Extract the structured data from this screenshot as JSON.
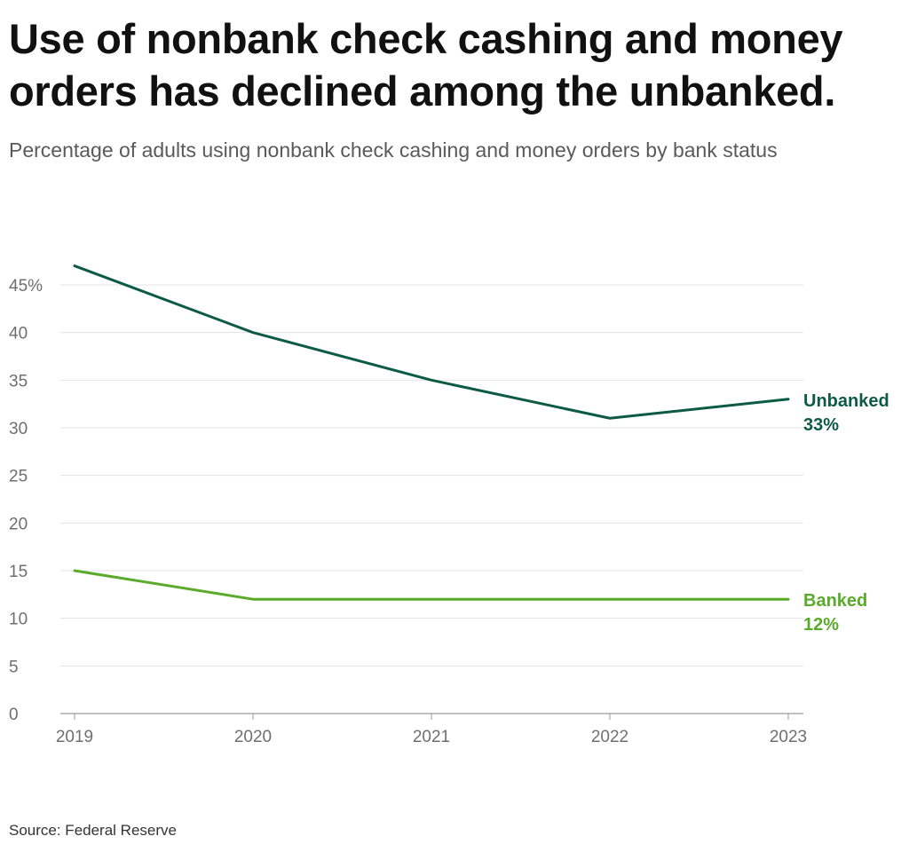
{
  "header": {
    "title": "Use of nonbank check cashing and money orders has declined among the unbanked.",
    "subtitle": "Percentage of adults using nonbank check cashing and money orders by bank status"
  },
  "footer": {
    "source": "Source: Federal Reserve"
  },
  "colors": {
    "unbanked": "#0d5a45",
    "banked": "#5aab2c",
    "grid": "#e3e3e3",
    "axis": "#9a9a9a"
  },
  "chart_data": {
    "type": "line",
    "title": "Use of nonbank check cashing and money orders has declined among the unbanked.",
    "subtitle": "Percentage of adults using nonbank check cashing and money orders by bank status",
    "xlabel": "",
    "ylabel": "",
    "x": [
      2019,
      2020,
      2021,
      2022,
      2023
    ],
    "x_tick_labels": [
      "2019",
      "2020",
      "2021",
      "2022",
      "2023"
    ],
    "ylim": [
      0,
      47
    ],
    "y_ticks": [
      0,
      5,
      10,
      15,
      20,
      25,
      30,
      35,
      40,
      45
    ],
    "y_tick_labels": [
      "0",
      "5",
      "10",
      "15",
      "20",
      "25",
      "30",
      "35",
      "40",
      "45%"
    ],
    "grid": true,
    "legend": "direct labels at line ends (right)",
    "series": [
      {
        "name": "Unbanked",
        "values": [
          47,
          40,
          35,
          31,
          33
        ],
        "end_label": "33%",
        "color": "#0d5a45"
      },
      {
        "name": "Banked",
        "values": [
          15,
          12,
          12,
          12,
          12
        ],
        "end_label": "12%",
        "color": "#5aab2c"
      }
    ]
  }
}
